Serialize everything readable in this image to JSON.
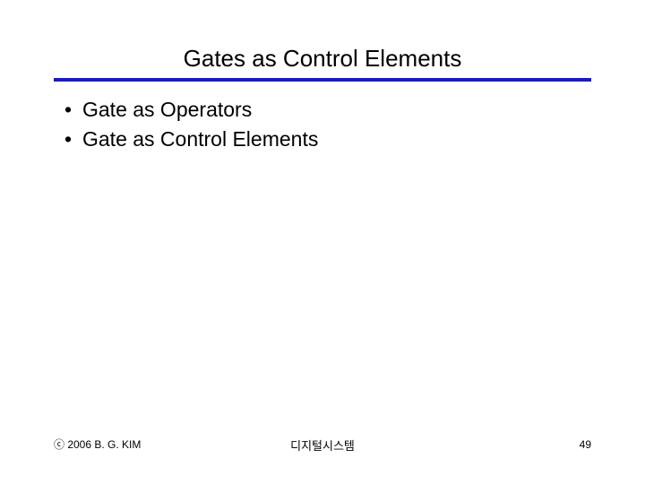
{
  "title": "Gates as Control Elements",
  "underline_color": "#1a1acc",
  "bullets": {
    "item0": "Gate as Operators",
    "item1": "Gate as Control Elements"
  },
  "footer": {
    "copyright": "ⓒ 2006  B. G. KIM",
    "center": "디지털시스템",
    "page": "49"
  }
}
